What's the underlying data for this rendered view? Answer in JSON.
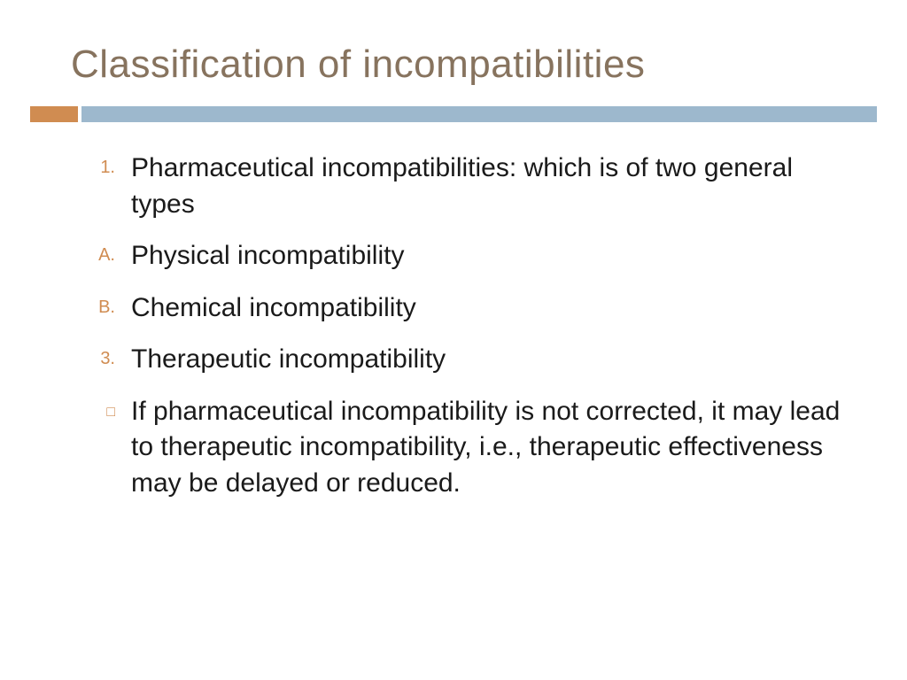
{
  "title": {
    "text": "Classification of incompatibilities",
    "color": "#87735e",
    "fontsize": 44
  },
  "rule": {
    "orange_color": "#d08c51",
    "blue_color": "#9db8cd",
    "height": 18
  },
  "marker_color": "#d08c51",
  "body_color": "#1a1a1a",
  "body_fontsize": 30,
  "items": [
    {
      "marker": "1.",
      "marker_type": "num",
      "text": "Pharmaceutical incompatibilities: which is of two general types"
    },
    {
      "marker": "A.",
      "marker_type": "alpha",
      "text": "Physical incompatibility"
    },
    {
      "marker": "B.",
      "marker_type": "alpha",
      "text": "Chemical incompatibility"
    },
    {
      "marker": "3.",
      "marker_type": "num",
      "text": "Therapeutic incompatibility"
    },
    {
      "marker": "□",
      "marker_type": "square",
      "text": "If pharmaceutical incompatibility is not corrected, it may lead to therapeutic incompatibility, i.e., therapeutic effectiveness may be delayed or reduced."
    }
  ]
}
